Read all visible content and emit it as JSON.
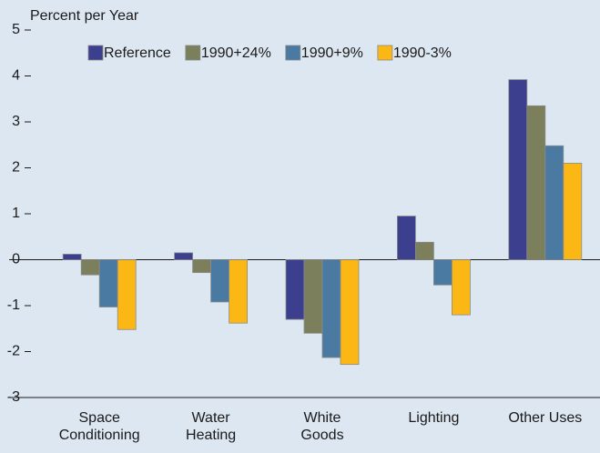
{
  "chart_data": {
    "type": "bar",
    "y_label": "Percent per Year",
    "categories": [
      "Space Conditioning",
      "Water Heating",
      "White Goods",
      "Lighting",
      "Other Uses"
    ],
    "series": [
      {
        "name": "Reference",
        "color": "#3b3f8e",
        "values": [
          0.12,
          0.15,
          -1.3,
          0.95,
          3.92
        ]
      },
      {
        "name": "1990+24%",
        "color": "#7b7f5b",
        "values": [
          -0.33,
          -0.28,
          -1.6,
          0.38,
          3.35
        ]
      },
      {
        "name": "1990+9%",
        "color": "#4a7aa1",
        "values": [
          -1.03,
          -0.92,
          -2.13,
          -0.55,
          2.48
        ]
      },
      {
        "name": "1990-3%",
        "color": "#fbb714",
        "values": [
          -1.52,
          -1.38,
          -2.28,
          -1.2,
          2.1
        ]
      }
    ],
    "legend_text_colors": [
      "#3b3f8e",
      "#6b6f4b",
      "#4a7aa1",
      "#f5a800"
    ],
    "ylim": [
      -3,
      5
    ],
    "yticks": [
      -3,
      -2,
      -1,
      0,
      1,
      2,
      3,
      4,
      5
    ],
    "legend": "top"
  }
}
